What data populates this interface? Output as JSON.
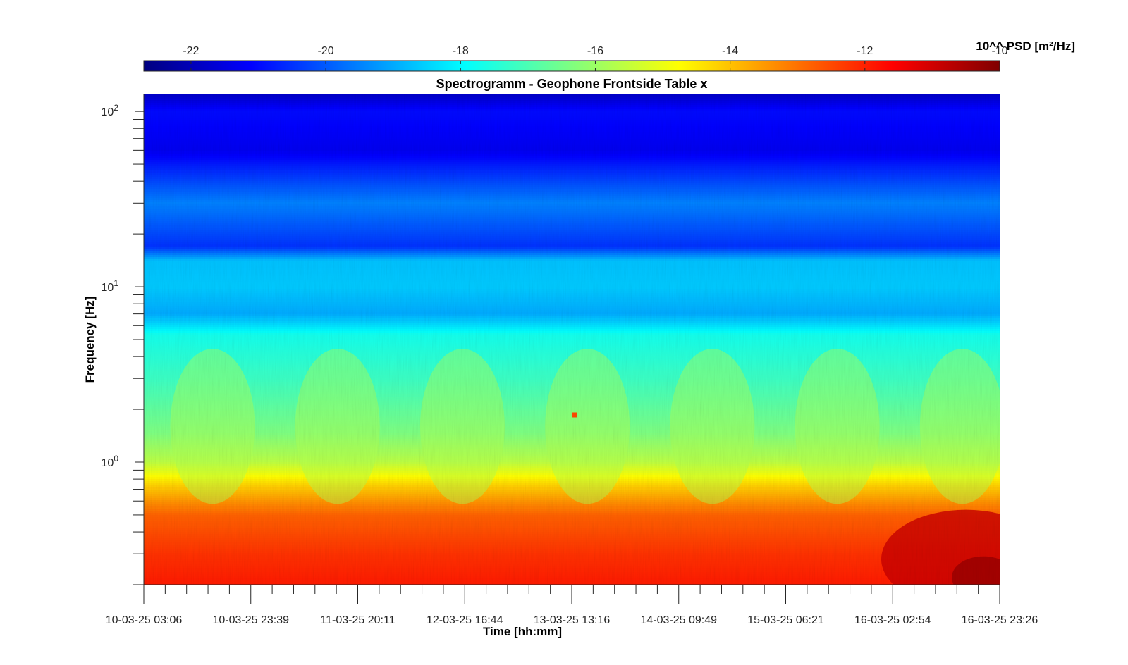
{
  "chart_data": {
    "type": "heatmap",
    "title": "Spectrogramm - Geophone Frontside Table x",
    "xlabel": "Time [hh:mm]",
    "ylabel": "Frequency [Hz]",
    "x_tick_labels": [
      "10-03-25 03:06",
      "10-03-25 23:39",
      "11-03-25 20:11",
      "12-03-25 16:44",
      "13-03-25 13:16",
      "14-03-25 09:49",
      "15-03-25 06:21",
      "16-03-25 02:54",
      "16-03-25 23:26"
    ],
    "x_range": [
      "10-03-25 03:06",
      "16-03-25 23:26"
    ],
    "y_scale": "log",
    "y_range": [
      0.2,
      125
    ],
    "y_ticks": [
      {
        "value": 1,
        "base": "10",
        "exp": "0"
      },
      {
        "value": 10,
        "base": "10",
        "exp": "1"
      },
      {
        "value": 100,
        "base": "10",
        "exp": "2"
      }
    ],
    "colorbar": {
      "label": "10^^ PSD [m²/Hz]",
      "colormap": "jet",
      "location": "top",
      "range": [
        -22.7,
        -10
      ],
      "ticks": [
        -22,
        -20,
        -18,
        -16,
        -14,
        -12,
        -10
      ]
    },
    "approx_psd_by_frequency": [
      {
        "f": 125,
        "log10_psd": -21.8
      },
      {
        "f": 100,
        "log10_psd": -21.0
      },
      {
        "f": 60,
        "log10_psd": -21.3
      },
      {
        "f": 30,
        "log10_psd": -19.5
      },
      {
        "f": 17,
        "log10_psd": -20.5
      },
      {
        "f": 14,
        "log10_psd": -18.7
      },
      {
        "f": 10,
        "log10_psd": -18.6
      },
      {
        "f": 7,
        "log10_psd": -19.0
      },
      {
        "f": 5.3,
        "log10_psd": -17.7
      },
      {
        "f": 3,
        "log10_psd": -17.2
      },
      {
        "f": 1.5,
        "log10_psd": -16.4
      },
      {
        "f": 1,
        "log10_psd": -15.6
      },
      {
        "f": 0.7,
        "log10_psd": -14.0
      },
      {
        "f": 0.5,
        "log10_psd": -12.8
      },
      {
        "f": 0.3,
        "log10_psd": -12.2
      },
      {
        "f": 0.2,
        "log10_psd": -11.9
      }
    ],
    "legend": "none"
  }
}
